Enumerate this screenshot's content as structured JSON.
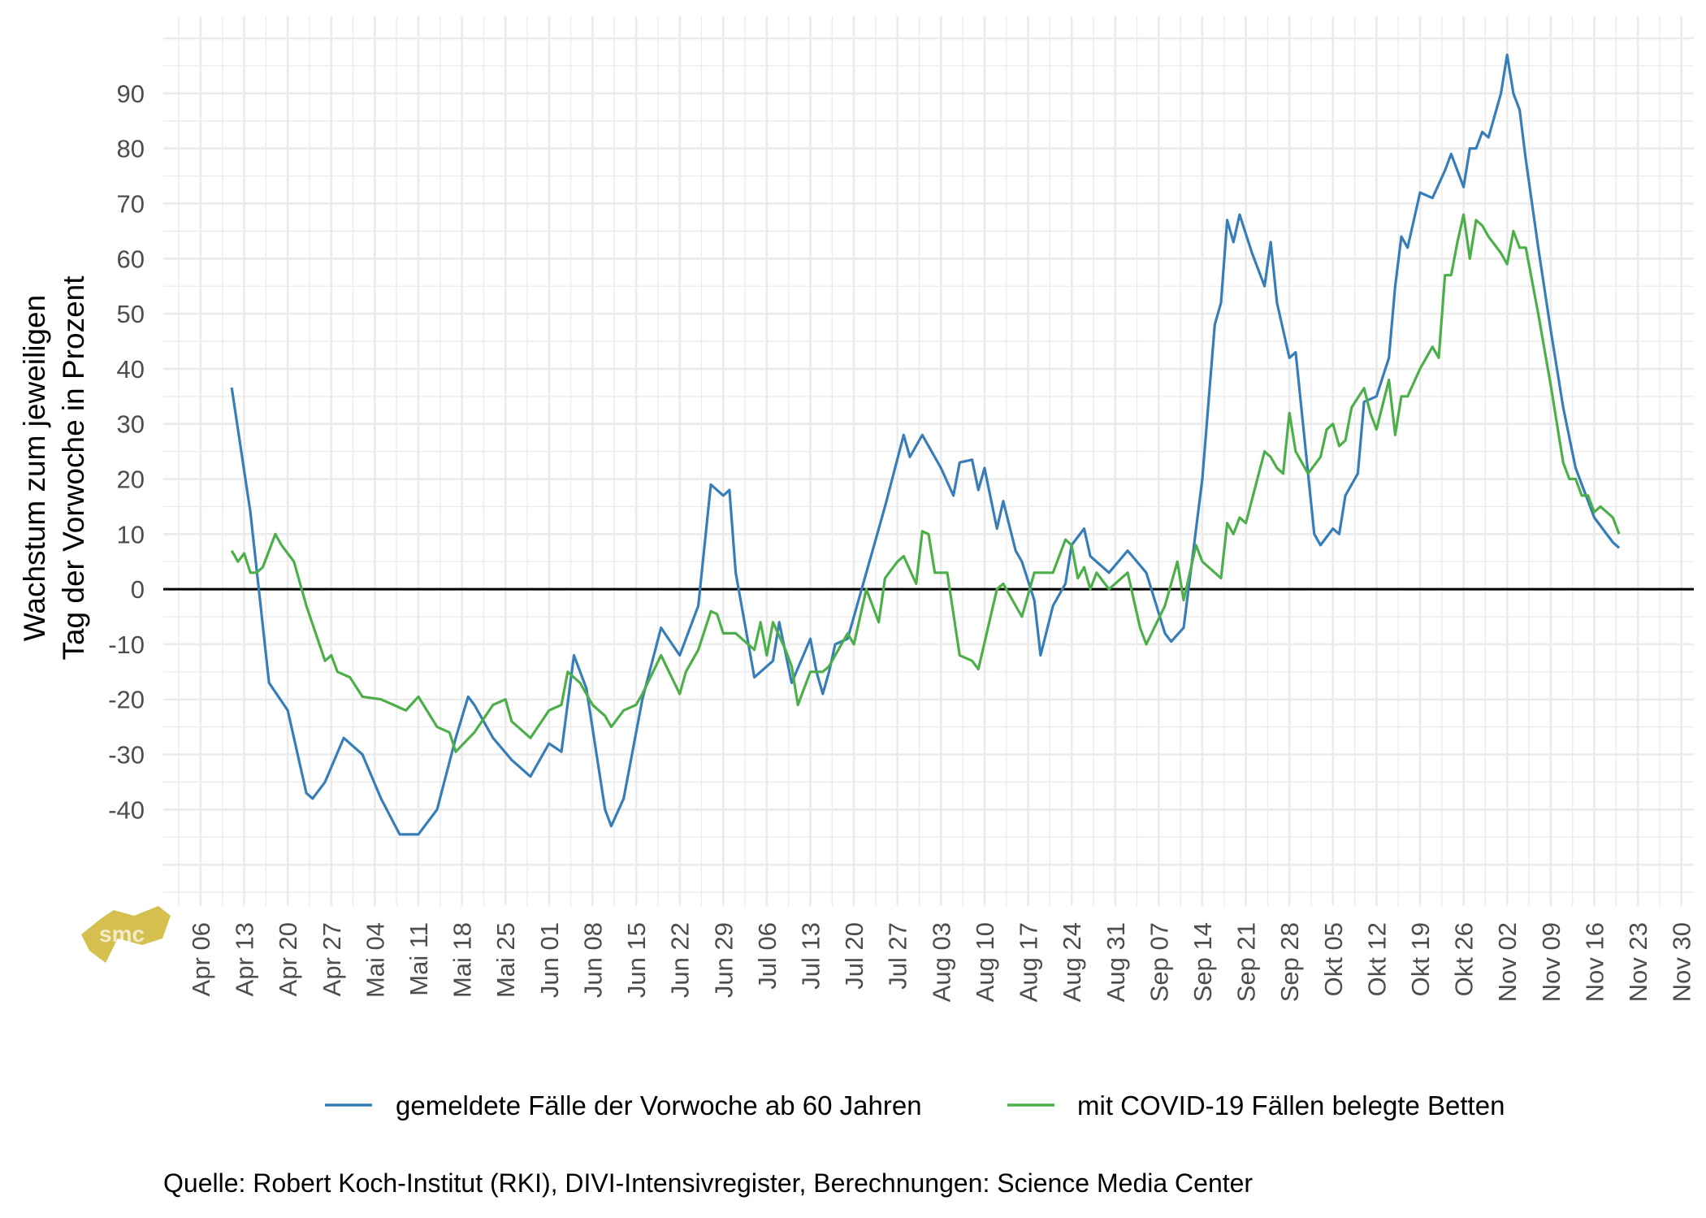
{
  "chart_data": {
    "type": "line",
    "title": "",
    "ylabel": [
      "Wachstum zum jeweiligen",
      "Tag der Vorwoche in Prozent"
    ],
    "xlabel": "",
    "xlim": [
      "2020-03-31",
      "2020-12-02"
    ],
    "ylim": [
      -57.5,
      104
    ],
    "grid": true,
    "legend_position": "bottom",
    "x_ticks": [
      "Apr 06",
      "Apr 13",
      "Apr 20",
      "Apr 27",
      "Mai 04",
      "Mai 11",
      "Mai 18",
      "Mai 25",
      "Jun 01",
      "Jun 08",
      "Jun 15",
      "Jun 22",
      "Jun 29",
      "Jul 06",
      "Jul 13",
      "Jul 20",
      "Jul 27",
      "Aug 03",
      "Aug 10",
      "Aug 17",
      "Aug 24",
      "Aug 31",
      "Sep 07",
      "Sep 14",
      "Sep 21",
      "Sep 28",
      "Okt 05",
      "Okt 12",
      "Okt 19",
      "Okt 26",
      "Nov 02",
      "Nov 09",
      "Nov 16",
      "Nov 23",
      "Nov 30"
    ],
    "x_tick_start": "2020-04-06",
    "y_ticks": [
      -40,
      -30,
      -20,
      -10,
      0,
      10,
      20,
      30,
      40,
      50,
      60,
      70,
      80,
      90
    ],
    "reference_line": 0,
    "series": [
      {
        "name": "gemeldete Fälle der Vorwoche ab 60 Jahren",
        "color": "#377eb8",
        "points": [
          [
            "2020-04-11",
            36.6
          ],
          [
            "2020-04-14",
            14
          ],
          [
            "2020-04-17",
            -17
          ],
          [
            "2020-04-20",
            -22
          ],
          [
            "2020-04-23",
            -37
          ],
          [
            "2020-04-24",
            -38
          ],
          [
            "2020-04-26",
            -35
          ],
          [
            "2020-04-29",
            -27
          ],
          [
            "2020-05-02",
            -30
          ],
          [
            "2020-05-05",
            -38
          ],
          [
            "2020-05-08",
            -44.5
          ],
          [
            "2020-05-11",
            -44.5
          ],
          [
            "2020-05-14",
            -40
          ],
          [
            "2020-05-17",
            -27
          ],
          [
            "2020-05-19",
            -19.5
          ],
          [
            "2020-05-20",
            -21
          ],
          [
            "2020-05-23",
            -27
          ],
          [
            "2020-05-26",
            -31
          ],
          [
            "2020-05-29",
            -34
          ],
          [
            "2020-06-01",
            -28
          ],
          [
            "2020-06-03",
            -29.5
          ],
          [
            "2020-06-05",
            -12
          ],
          [
            "2020-06-07",
            -18
          ],
          [
            "2020-06-10",
            -40
          ],
          [
            "2020-06-11",
            -43
          ],
          [
            "2020-06-13",
            -38
          ],
          [
            "2020-06-16",
            -20
          ],
          [
            "2020-06-19",
            -7
          ],
          [
            "2020-06-22",
            -12
          ],
          [
            "2020-06-25",
            -3
          ],
          [
            "2020-06-27",
            19
          ],
          [
            "2020-06-29",
            17
          ],
          [
            "2020-06-30",
            18
          ],
          [
            "2020-07-01",
            3
          ],
          [
            "2020-07-04",
            -16
          ],
          [
            "2020-07-07",
            -13
          ],
          [
            "2020-07-08",
            -6
          ],
          [
            "2020-07-10",
            -17
          ],
          [
            "2020-07-13",
            -9
          ],
          [
            "2020-07-14",
            -15
          ],
          [
            "2020-07-15",
            -19
          ],
          [
            "2020-07-16",
            -15
          ],
          [
            "2020-07-17",
            -10
          ],
          [
            "2020-07-19",
            -9
          ],
          [
            "2020-07-22",
            3
          ],
          [
            "2020-07-25",
            15
          ],
          [
            "2020-07-28",
            28
          ],
          [
            "2020-07-29",
            24
          ],
          [
            "2020-07-31",
            28
          ],
          [
            "2020-08-03",
            22
          ],
          [
            "2020-08-05",
            17
          ],
          [
            "2020-08-06",
            23
          ],
          [
            "2020-08-08",
            23.5
          ],
          [
            "2020-08-09",
            18
          ],
          [
            "2020-08-10",
            22
          ],
          [
            "2020-08-12",
            11
          ],
          [
            "2020-08-13",
            16
          ],
          [
            "2020-08-15",
            7
          ],
          [
            "2020-08-16",
            5
          ],
          [
            "2020-08-18",
            -2
          ],
          [
            "2020-08-19",
            -12
          ],
          [
            "2020-08-21",
            -3
          ],
          [
            "2020-08-23",
            1
          ],
          [
            "2020-08-24",
            8
          ],
          [
            "2020-08-26",
            11
          ],
          [
            "2020-08-27",
            6
          ],
          [
            "2020-08-30",
            3
          ],
          [
            "2020-09-02",
            7
          ],
          [
            "2020-09-05",
            3
          ],
          [
            "2020-09-08",
            -8
          ],
          [
            "2020-09-09",
            -9.5
          ],
          [
            "2020-09-11",
            -7
          ],
          [
            "2020-09-12",
            2
          ],
          [
            "2020-09-14",
            20
          ],
          [
            "2020-09-16",
            48
          ],
          [
            "2020-09-17",
            52
          ],
          [
            "2020-09-18",
            67
          ],
          [
            "2020-09-19",
            63
          ],
          [
            "2020-09-20",
            68
          ],
          [
            "2020-09-22",
            61
          ],
          [
            "2020-09-24",
            55
          ],
          [
            "2020-09-25",
            63
          ],
          [
            "2020-09-26",
            52
          ],
          [
            "2020-09-28",
            42
          ],
          [
            "2020-09-29",
            43
          ],
          [
            "2020-10-02",
            10
          ],
          [
            "2020-10-03",
            8
          ],
          [
            "2020-10-05",
            11
          ],
          [
            "2020-10-06",
            10
          ],
          [
            "2020-10-07",
            17
          ],
          [
            "2020-10-09",
            21
          ],
          [
            "2020-10-10",
            34
          ],
          [
            "2020-10-12",
            35
          ],
          [
            "2020-10-14",
            42
          ],
          [
            "2020-10-15",
            55
          ],
          [
            "2020-10-16",
            64
          ],
          [
            "2020-10-17",
            62
          ],
          [
            "2020-10-19",
            72
          ],
          [
            "2020-10-21",
            71
          ],
          [
            "2020-10-23",
            76
          ],
          [
            "2020-10-24",
            79
          ],
          [
            "2020-10-26",
            73
          ],
          [
            "2020-10-27",
            80
          ],
          [
            "2020-10-28",
            80
          ],
          [
            "2020-10-29",
            83
          ],
          [
            "2020-10-30",
            82
          ],
          [
            "2020-11-01",
            90
          ],
          [
            "2020-11-02",
            97
          ],
          [
            "2020-11-03",
            90
          ],
          [
            "2020-11-04",
            87
          ],
          [
            "2020-11-05",
            78
          ],
          [
            "2020-11-07",
            62
          ],
          [
            "2020-11-09",
            47
          ],
          [
            "2020-11-11",
            33
          ],
          [
            "2020-11-13",
            22
          ],
          [
            "2020-11-16",
            13
          ],
          [
            "2020-11-19",
            8.5
          ],
          [
            "2020-11-20",
            7.5
          ]
        ]
      },
      {
        "name": "mit COVID-19 Fällen belegte Betten",
        "color": "#4daf4a",
        "points": [
          [
            "2020-04-11",
            7
          ],
          [
            "2020-04-12",
            5
          ],
          [
            "2020-04-13",
            6.5
          ],
          [
            "2020-04-14",
            3
          ],
          [
            "2020-04-15",
            3
          ],
          [
            "2020-04-16",
            4
          ],
          [
            "2020-04-18",
            10
          ],
          [
            "2020-04-19",
            8
          ],
          [
            "2020-04-21",
            5
          ],
          [
            "2020-04-23",
            -3
          ],
          [
            "2020-04-26",
            -13
          ],
          [
            "2020-04-27",
            -12
          ],
          [
            "2020-04-28",
            -15
          ],
          [
            "2020-04-30",
            -16
          ],
          [
            "2020-05-02",
            -19.5
          ],
          [
            "2020-05-05",
            -20
          ],
          [
            "2020-05-08",
            -21.5
          ],
          [
            "2020-05-09",
            -22
          ],
          [
            "2020-05-11",
            -19.5
          ],
          [
            "2020-05-14",
            -25
          ],
          [
            "2020-05-16",
            -26
          ],
          [
            "2020-05-17",
            -29.5
          ],
          [
            "2020-05-20",
            -26
          ],
          [
            "2020-05-23",
            -21
          ],
          [
            "2020-05-25",
            -20
          ],
          [
            "2020-05-26",
            -24
          ],
          [
            "2020-05-29",
            -27
          ],
          [
            "2020-06-01",
            -22
          ],
          [
            "2020-06-03",
            -21
          ],
          [
            "2020-06-04",
            -15
          ],
          [
            "2020-06-06",
            -17
          ],
          [
            "2020-06-08",
            -21
          ],
          [
            "2020-06-10",
            -23
          ],
          [
            "2020-06-11",
            -25
          ],
          [
            "2020-06-13",
            -22
          ],
          [
            "2020-06-15",
            -21
          ],
          [
            "2020-06-16",
            -19
          ],
          [
            "2020-06-19",
            -12
          ],
          [
            "2020-06-22",
            -19
          ],
          [
            "2020-06-23",
            -15
          ],
          [
            "2020-06-25",
            -11
          ],
          [
            "2020-06-27",
            -4
          ],
          [
            "2020-06-28",
            -4.5
          ],
          [
            "2020-06-29",
            -8
          ],
          [
            "2020-07-01",
            -8
          ],
          [
            "2020-07-04",
            -11
          ],
          [
            "2020-07-05",
            -6
          ],
          [
            "2020-07-06",
            -12
          ],
          [
            "2020-07-07",
            -6
          ],
          [
            "2020-07-09",
            -11
          ],
          [
            "2020-07-10",
            -14
          ],
          [
            "2020-07-11",
            -21
          ],
          [
            "2020-07-13",
            -15
          ],
          [
            "2020-07-15",
            -15
          ],
          [
            "2020-07-16",
            -14
          ],
          [
            "2020-07-17",
            -12
          ],
          [
            "2020-07-19",
            -8
          ],
          [
            "2020-07-20",
            -10
          ],
          [
            "2020-07-22",
            0
          ],
          [
            "2020-07-24",
            -6
          ],
          [
            "2020-07-25",
            2
          ],
          [
            "2020-07-27",
            5
          ],
          [
            "2020-07-28",
            6
          ],
          [
            "2020-07-30",
            1
          ],
          [
            "2020-07-31",
            10.5
          ],
          [
            "2020-08-01",
            10
          ],
          [
            "2020-08-02",
            3
          ],
          [
            "2020-08-04",
            3
          ],
          [
            "2020-08-06",
            -12
          ],
          [
            "2020-08-08",
            -13
          ],
          [
            "2020-08-09",
            -14.5
          ],
          [
            "2020-08-12",
            0
          ],
          [
            "2020-08-13",
            1
          ],
          [
            "2020-08-15",
            -3
          ],
          [
            "2020-08-16",
            -5
          ],
          [
            "2020-08-18",
            3
          ],
          [
            "2020-08-21",
            3
          ],
          [
            "2020-08-23",
            9
          ],
          [
            "2020-08-24",
            8
          ],
          [
            "2020-08-25",
            2
          ],
          [
            "2020-08-26",
            4
          ],
          [
            "2020-08-27",
            0
          ],
          [
            "2020-08-28",
            3
          ],
          [
            "2020-08-30",
            0
          ],
          [
            "2020-09-02",
            3
          ],
          [
            "2020-09-04",
            -7
          ],
          [
            "2020-09-05",
            -10
          ],
          [
            "2020-09-08",
            -3
          ],
          [
            "2020-09-10",
            5
          ],
          [
            "2020-09-11",
            -2
          ],
          [
            "2020-09-13",
            8
          ],
          [
            "2020-09-14",
            5
          ],
          [
            "2020-09-17",
            2
          ],
          [
            "2020-09-18",
            12
          ],
          [
            "2020-09-19",
            10
          ],
          [
            "2020-09-20",
            13
          ],
          [
            "2020-09-21",
            12
          ],
          [
            "2020-09-24",
            25
          ],
          [
            "2020-09-25",
            24
          ],
          [
            "2020-09-26",
            22
          ],
          [
            "2020-09-27",
            21
          ],
          [
            "2020-09-28",
            32
          ],
          [
            "2020-09-29",
            25
          ],
          [
            "2020-10-01",
            21
          ],
          [
            "2020-10-03",
            24
          ],
          [
            "2020-10-04",
            29
          ],
          [
            "2020-10-05",
            30
          ],
          [
            "2020-10-06",
            26
          ],
          [
            "2020-10-07",
            27
          ],
          [
            "2020-10-08",
            33
          ],
          [
            "2020-10-10",
            36.5
          ],
          [
            "2020-10-11",
            32
          ],
          [
            "2020-10-12",
            29
          ],
          [
            "2020-10-14",
            38
          ],
          [
            "2020-10-15",
            28
          ],
          [
            "2020-10-16",
            35
          ],
          [
            "2020-10-17",
            35
          ],
          [
            "2020-10-19",
            40
          ],
          [
            "2020-10-21",
            44
          ],
          [
            "2020-10-22",
            42
          ],
          [
            "2020-10-23",
            57
          ],
          [
            "2020-10-24",
            57
          ],
          [
            "2020-10-25",
            63
          ],
          [
            "2020-10-26",
            68
          ],
          [
            "2020-10-27",
            60
          ],
          [
            "2020-10-28",
            67
          ],
          [
            "2020-10-29",
            66
          ],
          [
            "2020-10-30",
            64
          ],
          [
            "2020-11-01",
            61
          ],
          [
            "2020-11-02",
            59
          ],
          [
            "2020-11-03",
            65
          ],
          [
            "2020-11-04",
            62
          ],
          [
            "2020-11-05",
            62
          ],
          [
            "2020-11-07",
            50
          ],
          [
            "2020-11-09",
            37
          ],
          [
            "2020-11-11",
            23
          ],
          [
            "2020-11-12",
            20
          ],
          [
            "2020-11-13",
            20
          ],
          [
            "2020-11-14",
            17
          ],
          [
            "2020-11-15",
            17
          ],
          [
            "2020-11-16",
            14
          ],
          [
            "2020-11-17",
            15
          ],
          [
            "2020-11-19",
            13
          ],
          [
            "2020-11-20",
            10
          ]
        ]
      }
    ]
  },
  "caption": "Quelle: Robert Koch-Institut (RKI), DIVI-Intensivregister, Berechnungen: Science Media Center",
  "logo": {
    "text": "smc",
    "color": "#d4bf4f"
  }
}
